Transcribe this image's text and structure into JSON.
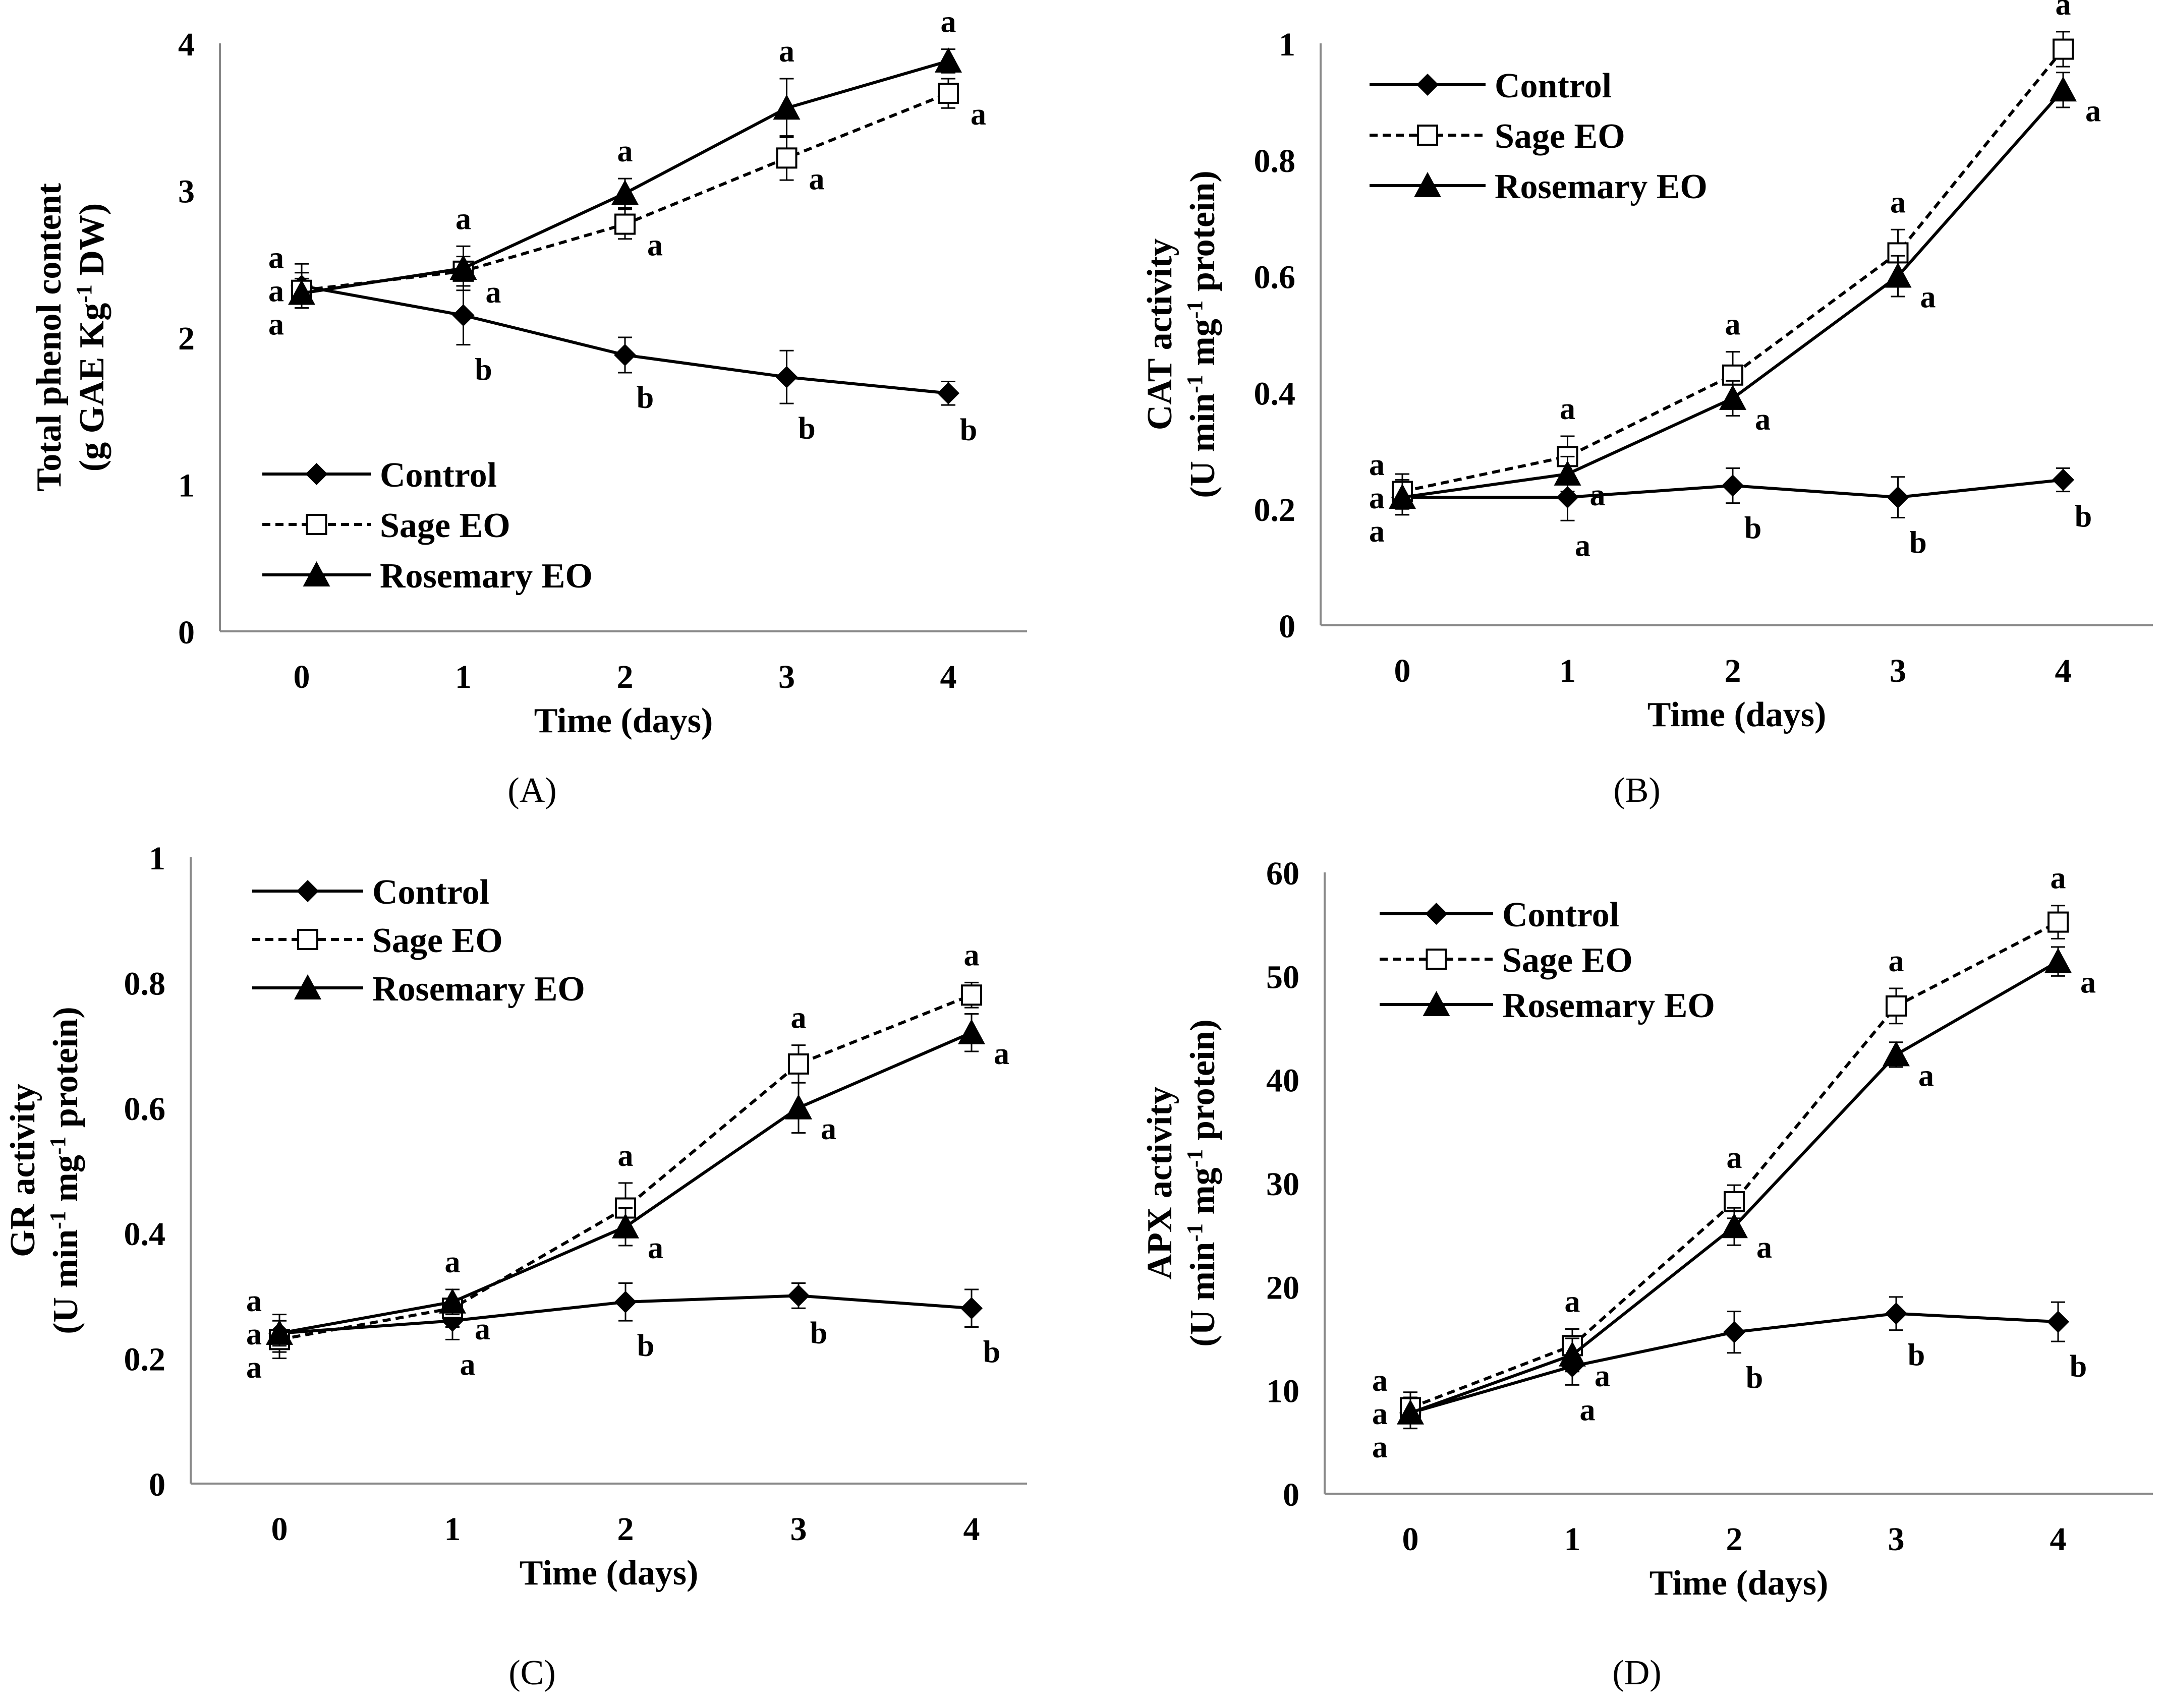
{
  "chart_data": [
    {
      "type": "line",
      "panel_label": "(A)",
      "xlabel": "Time (days)",
      "ylabel_line1": "Total phenol content",
      "ylabel_line2_prefix": "(g GAE Kg",
      "ylabel_line2_sup": "-1",
      "ylabel_line2_suffix": " DW)",
      "x": [
        0,
        1,
        2,
        3,
        4
      ],
      "x_ticks": [
        "0",
        "1",
        "2",
        "3",
        "4"
      ],
      "ylim": [
        0,
        4
      ],
      "y_ticks": [
        {
          "value": 0,
          "label": "0"
        },
        {
          "value": 1,
          "label": "1"
        },
        {
          "value": 2,
          "label": "2"
        },
        {
          "value": 3,
          "label": "3"
        },
        {
          "value": 4,
          "label": "4"
        }
      ],
      "legend_position": "bottom-left",
      "series": [
        {
          "name": "Control",
          "marker": "diamond",
          "dash": "solid",
          "values": [
            2.35,
            2.15,
            1.88,
            1.73,
            1.62
          ],
          "errors": [
            0.15,
            0.2,
            0.12,
            0.18,
            0.08
          ],
          "letters": [
            "a",
            "b",
            "b",
            "b",
            "b"
          ]
        },
        {
          "name": "Sage EO",
          "marker": "square-open",
          "dash": "dashed",
          "values": [
            2.32,
            2.45,
            2.77,
            3.22,
            3.66
          ],
          "errors": [
            0.12,
            0.1,
            0.1,
            0.15,
            0.1
          ],
          "letters": [
            "a",
            "a",
            "a",
            "a",
            "a"
          ]
        },
        {
          "name": "Rosemary EO",
          "marker": "triangle",
          "dash": "solid",
          "values": [
            2.3,
            2.47,
            2.98,
            3.56,
            3.88
          ],
          "errors": [
            0.1,
            0.15,
            0.1,
            0.2,
            0.08
          ],
          "letters": [
            "a",
            "a",
            "a",
            "a",
            "a"
          ]
        }
      ]
    },
    {
      "type": "line",
      "panel_label": "(B)",
      "xlabel": "Time (days)",
      "ylabel_line1": "CAT activity",
      "ylabel_line2_prefix": "(U min",
      "ylabel_line2_sup": "-1",
      "ylabel_line2_mid": " mg",
      "ylabel_line2_sup2": "-1",
      "ylabel_line2_suffix": " protein)",
      "x": [
        0,
        1,
        2,
        3,
        4
      ],
      "x_ticks": [
        "0",
        "1",
        "2",
        "3",
        "4"
      ],
      "ylim": [
        0,
        1
      ],
      "y_ticks": [
        {
          "value": 0,
          "label": "0"
        },
        {
          "value": 0.2,
          "label": "0.2"
        },
        {
          "value": 0.4,
          "label": "0.4"
        },
        {
          "value": 0.6,
          "label": "0.6"
        },
        {
          "value": 0.8,
          "label": "0.8"
        },
        {
          "value": 1,
          "label": "1"
        }
      ],
      "legend_position": "top-left",
      "series": [
        {
          "name": "Control",
          "marker": "diamond",
          "dash": "solid",
          "values": [
            0.22,
            0.22,
            0.24,
            0.22,
            0.25
          ],
          "errors": [
            0.03,
            0.04,
            0.03,
            0.035,
            0.02
          ],
          "letters": [
            "a",
            "a",
            "b",
            "b",
            "b"
          ]
        },
        {
          "name": "Sage EO",
          "marker": "square-open",
          "dash": "dashed",
          "values": [
            0.23,
            0.29,
            0.43,
            0.64,
            0.99
          ],
          "errors": [
            0.03,
            0.035,
            0.04,
            0.04,
            0.03
          ],
          "letters": [
            "a",
            "a",
            "a",
            "a",
            "a"
          ]
        },
        {
          "name": "Rosemary EO",
          "marker": "triangle",
          "dash": "solid",
          "values": [
            0.22,
            0.26,
            0.39,
            0.6,
            0.92
          ],
          "errors": [
            0.03,
            0.03,
            0.03,
            0.035,
            0.03
          ],
          "letters": [
            "a",
            "a",
            "a",
            "a",
            "a"
          ]
        }
      ]
    },
    {
      "type": "line",
      "panel_label": "(C)",
      "xlabel": "Time (days)",
      "ylabel_line1": "GR activity",
      "ylabel_line2_prefix": "(U min",
      "ylabel_line2_sup": "-1",
      "ylabel_line2_mid": " mg",
      "ylabel_line2_sup2": "-1",
      "ylabel_line2_suffix": " protein)",
      "x": [
        0,
        1,
        2,
        3,
        4
      ],
      "x_ticks": [
        "0",
        "1",
        "2",
        "3",
        "4"
      ],
      "ylim": [
        0,
        1
      ],
      "y_ticks": [
        {
          "value": 0,
          "label": "0"
        },
        {
          "value": 0.2,
          "label": "0.2"
        },
        {
          "value": 0.4,
          "label": "0.4"
        },
        {
          "value": 0.6,
          "label": "0.6"
        },
        {
          "value": 0.8,
          "label": "0.8"
        },
        {
          "value": 1,
          "label": "1"
        }
      ],
      "legend_position": "top-left",
      "series": [
        {
          "name": "Control",
          "marker": "diamond",
          "dash": "solid",
          "values": [
            0.24,
            0.26,
            0.29,
            0.3,
            0.28
          ],
          "errors": [
            0.03,
            0.03,
            0.03,
            0.02,
            0.03
          ],
          "letters": [
            "a",
            "a",
            "b",
            "b",
            "b"
          ]
        },
        {
          "name": "Sage EO",
          "marker": "square-open",
          "dash": "dashed",
          "values": [
            0.23,
            0.28,
            0.44,
            0.67,
            0.78
          ],
          "errors": [
            0.03,
            0.03,
            0.04,
            0.03,
            0.02
          ],
          "letters": [
            "a",
            "a",
            "a",
            "a",
            "a"
          ]
        },
        {
          "name": "Rosemary EO",
          "marker": "triangle",
          "dash": "solid",
          "values": [
            0.24,
            0.29,
            0.41,
            0.6,
            0.72
          ],
          "errors": [
            0.02,
            0.02,
            0.03,
            0.04,
            0.03
          ],
          "letters": [
            "a",
            "a",
            "a",
            "a",
            "a"
          ]
        }
      ]
    },
    {
      "type": "line",
      "panel_label": "(D)",
      "xlabel": "Time (days)",
      "ylabel_line1": "APX activity",
      "ylabel_line2_prefix": "(U min",
      "ylabel_line2_sup": "-1",
      "ylabel_line2_mid": " mg",
      "ylabel_line2_sup2": "-1",
      "ylabel_line2_suffix": " protein)",
      "x": [
        0,
        1,
        2,
        3,
        4
      ],
      "x_ticks": [
        "0",
        "1",
        "2",
        "3",
        "4"
      ],
      "ylim": [
        0,
        60
      ],
      "y_ticks": [
        {
          "value": 0,
          "label": "0"
        },
        {
          "value": 10,
          "label": "10"
        },
        {
          "value": 20,
          "label": "20"
        },
        {
          "value": 30,
          "label": "30"
        },
        {
          "value": 40,
          "label": "40"
        },
        {
          "value": 50,
          "label": "50"
        },
        {
          "value": 60,
          "label": "60"
        }
      ],
      "legend_position": "top-left",
      "series": [
        {
          "name": "Control",
          "marker": "diamond",
          "dash": "solid",
          "values": [
            7.8,
            12.3,
            15.6,
            17.4,
            16.6
          ],
          "errors": [
            1.5,
            1.8,
            2.0,
            1.6,
            1.9
          ],
          "letters": [
            "a",
            "a",
            "b",
            "b",
            "b"
          ]
        },
        {
          "name": "Sage EO",
          "marker": "square-open",
          "dash": "dashed",
          "values": [
            8.3,
            14.3,
            28.2,
            47.1,
            55.2
          ],
          "errors": [
            1.5,
            1.6,
            1.6,
            1.7,
            1.6
          ],
          "letters": [
            "a",
            "a",
            "a",
            "a",
            "a"
          ]
        },
        {
          "name": "Rosemary EO",
          "marker": "triangle",
          "dash": "solid",
          "values": [
            7.8,
            13.4,
            25.8,
            42.4,
            51.4
          ],
          "errors": [
            1.5,
            1.6,
            1.8,
            1.2,
            1.4
          ],
          "letters": [
            "a",
            "a",
            "a",
            "a",
            "a"
          ]
        }
      ]
    }
  ]
}
